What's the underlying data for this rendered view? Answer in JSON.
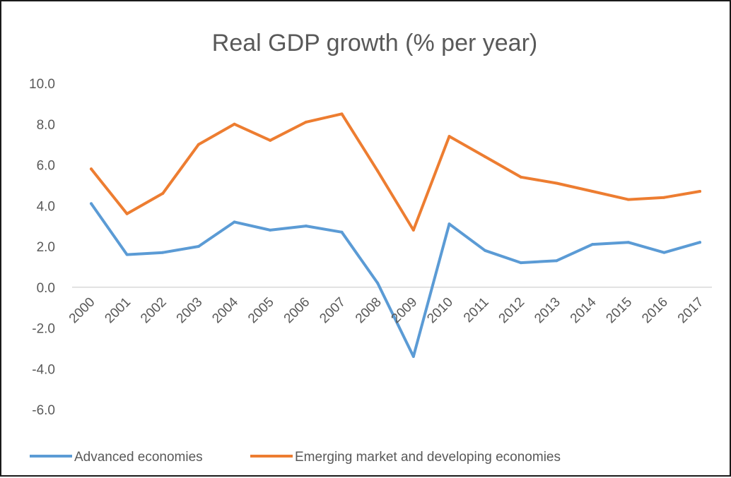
{
  "chart_data": {
    "type": "line",
    "title": "Real GDP growth (% per year)",
    "xlabel": "",
    "ylabel": "",
    "categories": [
      "2000",
      "2001",
      "2002",
      "2003",
      "2004",
      "2005",
      "2006",
      "2007",
      "2008",
      "2009",
      "2010",
      "2011",
      "2012",
      "2013",
      "2014",
      "2015",
      "2016",
      "2017"
    ],
    "ylim": [
      -6.0,
      10.0
    ],
    "y_ticks": [
      "10.0",
      "8.0",
      "6.0",
      "4.0",
      "2.0",
      "0.0",
      "-2.0",
      "-4.0",
      "-6.0"
    ],
    "grid": "zero line only",
    "legend_position": "bottom",
    "series": [
      {
        "name": "Advanced economies",
        "color": "#5b9bd5",
        "values": [
          4.1,
          1.6,
          1.7,
          2.0,
          3.2,
          2.8,
          3.0,
          2.7,
          0.2,
          -3.4,
          3.1,
          1.8,
          1.2,
          1.3,
          2.1,
          2.2,
          1.7,
          2.2
        ]
      },
      {
        "name": "Emerging market and developing economies",
        "color": "#ed7d31",
        "values": [
          5.8,
          3.6,
          4.6,
          7.0,
          8.0,
          7.2,
          8.1,
          8.5,
          5.7,
          2.8,
          7.4,
          6.4,
          5.4,
          5.1,
          4.7,
          4.3,
          4.4,
          4.7
        ]
      }
    ]
  }
}
